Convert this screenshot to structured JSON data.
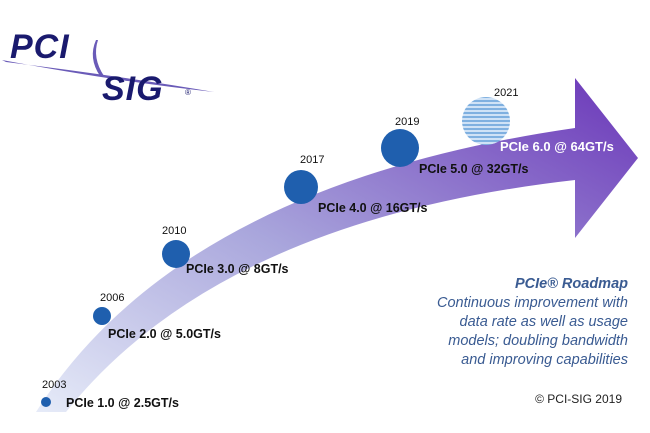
{
  "logo": {
    "line1": "PCI",
    "line2": "SIG",
    "registered": "®"
  },
  "milestones": [
    {
      "year": "2003",
      "label": "PCIe 1.0 @ 2.5GT/s"
    },
    {
      "year": "2006",
      "label": "PCIe 2.0 @ 5.0GT/s"
    },
    {
      "year": "2010",
      "label": "PCIe 3.0 @ 8GT/s"
    },
    {
      "year": "2017",
      "label": "PCIe 4.0 @ 16GT/s"
    },
    {
      "year": "2019",
      "label": "PCIe 5.0 @ 32GT/s"
    },
    {
      "year": "2021",
      "label": "PCIe 6.0 @ 64GT/s"
    }
  ],
  "roadmap": {
    "title": "PCIe® Roadmap",
    "description_lines": [
      "Continuous improvement with",
      "data rate as well as usage",
      "models; doubling bandwidth",
      "and improving capabilities"
    ]
  },
  "copyright": "© PCI-SIG 2019",
  "colors": {
    "arrow_start": "#d7def3",
    "arrow_mid": "#8f86cf",
    "arrow_end": "#6a35b8",
    "node": "#1f5fae",
    "future_node": "#9ec3e8",
    "logo": "#1a1a6e",
    "roadmap_text": "#3a5b92"
  }
}
